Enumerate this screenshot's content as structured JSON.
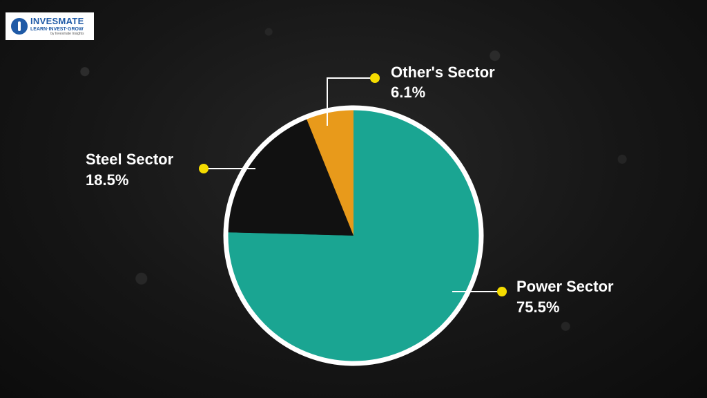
{
  "brand": {
    "name": "INVESMATE",
    "tagline": "LEARN·INVEST·GROW",
    "byline": "by Invesmate Insights"
  },
  "colors": {
    "power": "#1aa592",
    "steel": "#111111",
    "others": "#e89a1b",
    "outline": "#ffffff",
    "dot": "#f5dc00"
  },
  "chart_data": {
    "type": "pie",
    "categories": [
      "Power Sector",
      "Steel Sector",
      "Other's Sector"
    ],
    "values": [
      75.5,
      18.5,
      6.1
    ],
    "value_labels": [
      "75.5%",
      "18.5%",
      "6.1%"
    ],
    "start_angle_deg": 0,
    "direction": "clockwise"
  }
}
